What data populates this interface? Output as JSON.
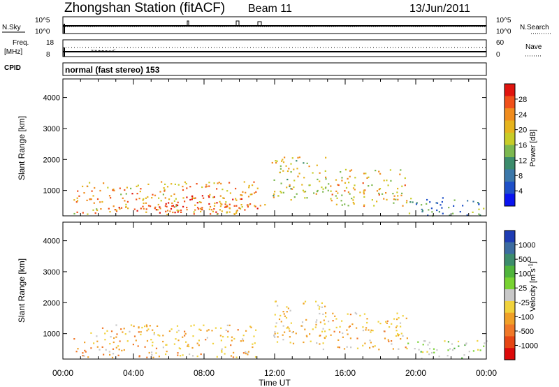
{
  "header": {
    "title": "Zhongshan Station (fitACF)",
    "beam": "Beam 11",
    "date": "13/Jun/2011"
  },
  "top_panels": {
    "nsky_label": "N.Sky",
    "nsearch_label": "N.Search",
    "freq_label": "Freq.",
    "freq_unit": "[MHz]",
    "nave_label": "Nave",
    "cpid_label": "CPID",
    "cpid_value": "normal (fast stereo) 153",
    "nsky_ticks": [
      "10^5",
      "10^0"
    ],
    "nsearch_ticks": [
      "10^5",
      "10^0"
    ],
    "freq_ticks": [
      "18",
      "8"
    ],
    "nave_ticks": [
      "60",
      "0"
    ]
  },
  "colorbars": {
    "power": {
      "label": "Power [dB]",
      "ticks": [
        "28",
        "24",
        "20",
        "16",
        "12",
        "8",
        "4"
      ],
      "colors": [
        "#e0140e",
        "#f0501a",
        "#f08c1e",
        "#e6b41e",
        "#c8cc28",
        "#7cb850",
        "#3c8c6c",
        "#3c78aa",
        "#1e50c8",
        "#0a14f0"
      ]
    },
    "velocity": {
      "label": "Velocity [m s",
      "label_sup": "-1",
      "label_end": "]",
      "ticks": [
        "1000",
        "500",
        "100",
        "25",
        "-25",
        "-100",
        "-500",
        "-1000"
      ],
      "colors": [
        "#1e3cb4",
        "#3c6ca0",
        "#3c8c6c",
        "#50b43c",
        "#78d232",
        "#c8c8c8",
        "#f0d23c",
        "#f0a028",
        "#f07828",
        "#e64614",
        "#dc0a0a"
      ]
    }
  },
  "chart_data": [
    {
      "type": "heatmap",
      "title": "Power",
      "xlabel": "Time UT",
      "ylabel": "Slant Range [km]",
      "xlim": [
        "00:00",
        "24:00"
      ],
      "ylim": [
        180,
        4600
      ],
      "x_ticks": [
        "00:00",
        "04:00",
        "08:00",
        "12:00",
        "16:00",
        "20:00",
        "00:00"
      ],
      "y_ticks": [
        "1000",
        "2000",
        "3000",
        "4000"
      ],
      "colorbar": "Power [dB]",
      "clim": [
        0,
        32
      ],
      "blobs": [
        {
          "t0": 0.6,
          "t1": 11.0,
          "r0": 250,
          "r1": 1300,
          "value": 22
        },
        {
          "t0": 5.0,
          "t1": 10.2,
          "r0": 400,
          "r1": 900,
          "value": 27
        },
        {
          "t0": 2.5,
          "t1": 11.8,
          "r0": 300,
          "r1": 600,
          "value": 26
        },
        {
          "t0": 11.8,
          "t1": 15.0,
          "r0": 700,
          "r1": 2100,
          "value": 18
        },
        {
          "t0": 14.5,
          "t1": 19.5,
          "r0": 500,
          "r1": 1700,
          "value": 20
        },
        {
          "t0": 19.5,
          "t1": 24.0,
          "r0": 200,
          "r1": 800,
          "value": 10
        }
      ]
    },
    {
      "type": "heatmap",
      "title": "Velocity",
      "xlabel": "Time UT",
      "ylabel": "Slant Range [km]",
      "xlim": [
        "00:00",
        "24:00"
      ],
      "ylim": [
        180,
        4600
      ],
      "x_ticks": [
        "00:00",
        "04:00",
        "08:00",
        "12:00",
        "16:00",
        "20:00",
        "00:00"
      ],
      "y_ticks": [
        "1000",
        "2000",
        "3000",
        "4000"
      ],
      "colorbar": "Velocity [m s-1]",
      "clim": [
        -1000,
        1000
      ],
      "blobs": [
        {
          "t0": 0.6,
          "t1": 11.0,
          "r0": 250,
          "r1": 1300,
          "value": -300
        },
        {
          "t0": 11.8,
          "t1": 15.0,
          "r0": 700,
          "r1": 2100,
          "value": -200
        },
        {
          "t0": 14.5,
          "t1": 19.5,
          "r0": 500,
          "r1": 1700,
          "value": -250
        },
        {
          "t0": 19.5,
          "t1": 24.0,
          "r0": 200,
          "r1": 800,
          "value": 100
        }
      ]
    }
  ]
}
